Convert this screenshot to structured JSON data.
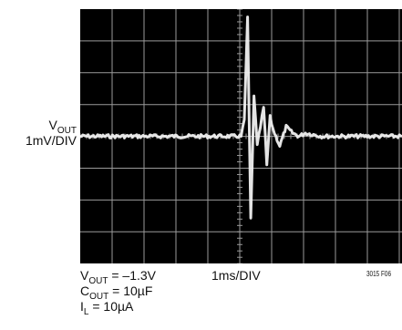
{
  "chart_data": {
    "type": "line",
    "title": "",
    "ylabel": {
      "name": "V",
      "sub": "OUT",
      "scale": "1mV/DIV"
    },
    "xlabel": "1ms/DIV",
    "grid": true,
    "x": [
      0,
      1,
      2,
      3,
      4,
      4.5,
      5,
      5.1,
      5.2,
      5.3,
      5.4,
      5.5,
      5.6,
      5.7,
      5.8,
      5.9,
      6,
      6.2,
      6.4,
      6.6,
      6.8,
      7,
      7.5,
      8,
      9,
      10
    ],
    "series": [
      {
        "values": [
          0,
          0,
          0,
          0,
          0,
          0,
          0,
          0.5,
          3.7,
          -2.6,
          1.3,
          -0.3,
          0.3,
          0.9,
          -0.9,
          0.6,
          0.2,
          -0.3,
          0.3,
          0.1,
          0,
          0.1,
          0,
          0,
          0,
          0
        ]
      }
    ]
  },
  "conditions": [
    {
      "name": "V",
      "sub": "OUT",
      "value": " = –1.3V"
    },
    {
      "name": "C",
      "sub": "OUT",
      "value": " = 10µF"
    },
    {
      "name": "I",
      "sub": "L",
      "value": " = 10µA"
    }
  ],
  "figure_id": "3015 F06",
  "colors": {
    "screen": "#000000",
    "grid": "#9a9a9a",
    "trace": "#f0f0f0"
  }
}
